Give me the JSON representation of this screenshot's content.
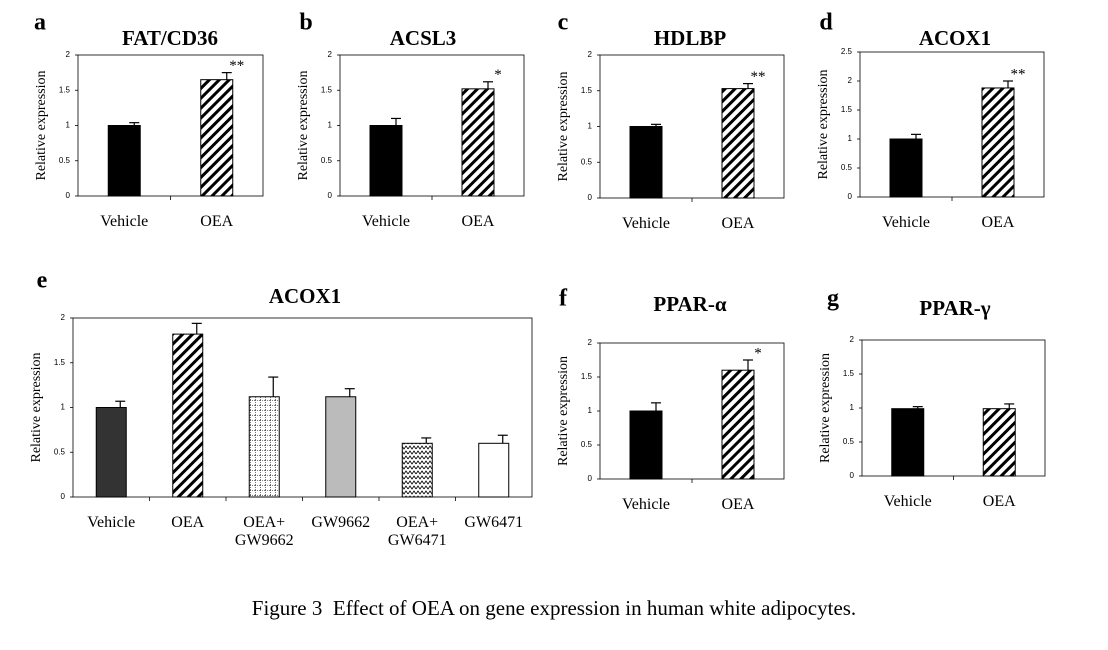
{
  "chart_data": [
    {
      "type": "bar",
      "panel": "a",
      "title": "FAT/CD36",
      "ylabel": "Relative expression",
      "categories": [
        "Vehicle",
        "OEA"
      ],
      "values": [
        1.0,
        1.65
      ],
      "errors": [
        0.04,
        0.1
      ],
      "significance": [
        null,
        "**"
      ],
      "bar_fills": [
        "solid-black",
        "diagonal-hatch"
      ],
      "ylim": [
        0,
        2
      ],
      "yticks": [
        0,
        0.5,
        1,
        1.5,
        2
      ]
    },
    {
      "type": "bar",
      "panel": "b",
      "title": "ACSL3",
      "ylabel": "Relative expression",
      "categories": [
        "Vehicle",
        "OEA"
      ],
      "values": [
        1.0,
        1.52
      ],
      "errors": [
        0.1,
        0.1
      ],
      "significance": [
        null,
        "*"
      ],
      "bar_fills": [
        "solid-black",
        "diagonal-hatch"
      ],
      "ylim": [
        0,
        2
      ],
      "yticks": [
        0,
        0.5,
        1,
        1.5,
        2
      ]
    },
    {
      "type": "bar",
      "panel": "c",
      "title": "HDLBP",
      "ylabel": "Relative expression",
      "categories": [
        "Vehicle",
        "OEA"
      ],
      "values": [
        1.0,
        1.53
      ],
      "errors": [
        0.03,
        0.07
      ],
      "significance": [
        null,
        "**"
      ],
      "bar_fills": [
        "solid-black",
        "diagonal-hatch"
      ],
      "ylim": [
        0,
        2
      ],
      "yticks": [
        0,
        0.5,
        1,
        1.5,
        2
      ]
    },
    {
      "type": "bar",
      "panel": "d",
      "title": "ACOX1",
      "ylabel": "Relative expression",
      "categories": [
        "Vehicle",
        "OEA"
      ],
      "values": [
        1.0,
        1.88
      ],
      "errors": [
        0.08,
        0.12
      ],
      "significance": [
        null,
        "**"
      ],
      "bar_fills": [
        "solid-black",
        "diagonal-hatch"
      ],
      "ylim": [
        0,
        2.5
      ],
      "yticks": [
        0,
        0.5,
        1,
        1.5,
        2,
        2.5
      ]
    },
    {
      "type": "bar",
      "panel": "e",
      "title": "ACOX1",
      "ylabel": "Relative expression",
      "categories": [
        "Vehicle",
        "OEA",
        "OEA+\nGW9662",
        "GW9662",
        "OEA+\nGW6471",
        "GW6471"
      ],
      "values": [
        1.0,
        1.82,
        1.12,
        1.12,
        0.6,
        0.6
      ],
      "errors": [
        0.07,
        0.12,
        0.22,
        0.09,
        0.06,
        0.09
      ],
      "significance": [
        null,
        null,
        null,
        null,
        null,
        null
      ],
      "bar_fills": [
        "solid-dark",
        "diagonal-hatch",
        "dotted-grid",
        "solid-grey",
        "zigzag",
        "solid-white"
      ],
      "ylim": [
        0,
        2
      ],
      "yticks": [
        0,
        0.5,
        1,
        1.5,
        2
      ]
    },
    {
      "type": "bar",
      "panel": "f",
      "title": "PPAR-α",
      "ylabel": "Relative expression",
      "categories": [
        "Vehicle",
        "OEA"
      ],
      "values": [
        1.0,
        1.6
      ],
      "errors": [
        0.12,
        0.15
      ],
      "significance": [
        null,
        "*"
      ],
      "bar_fills": [
        "solid-black",
        "diagonal-hatch"
      ],
      "ylim": [
        0,
        2
      ],
      "yticks": [
        0,
        0.5,
        1,
        1.5,
        2
      ]
    },
    {
      "type": "bar",
      "panel": "g",
      "title": "PPAR-γ",
      "ylabel": "Relative expression",
      "categories": [
        "Vehicle",
        "OEA"
      ],
      "values": [
        0.99,
        0.99
      ],
      "errors": [
        0.03,
        0.07
      ],
      "significance": [
        null,
        null
      ],
      "bar_fills": [
        "solid-black",
        "diagonal-hatch"
      ],
      "ylim": [
        0,
        2
      ],
      "yticks": [
        0,
        0.5,
        1,
        1.5,
        2
      ]
    }
  ],
  "caption": "Figure 3  Effect of OEA on gene expression in human white adipocytes."
}
